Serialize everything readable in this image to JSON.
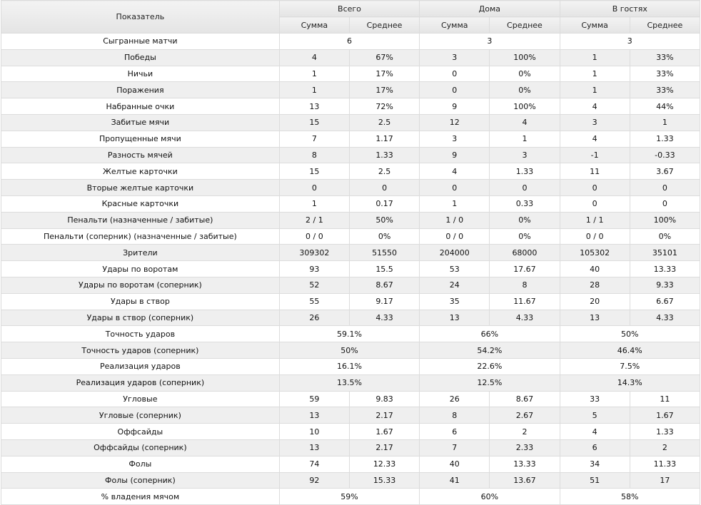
{
  "header": {
    "indicator_label": "Показатель",
    "groups": [
      "Всего",
      "Дома",
      "В гостях"
    ],
    "sub_labels": [
      "Сумма",
      "Среднее"
    ]
  },
  "rows": [
    {
      "label": "Сыгранные матчи",
      "merged": true,
      "values": [
        "6",
        "3",
        "3"
      ]
    },
    {
      "label": "Победы",
      "merged": false,
      "values": [
        "4",
        "67%",
        "3",
        "100%",
        "1",
        "33%"
      ]
    },
    {
      "label": "Ничьи",
      "merged": false,
      "values": [
        "1",
        "17%",
        "0",
        "0%",
        "1",
        "33%"
      ]
    },
    {
      "label": "Поражения",
      "merged": false,
      "values": [
        "1",
        "17%",
        "0",
        "0%",
        "1",
        "33%"
      ]
    },
    {
      "label": "Набранные очки",
      "merged": false,
      "values": [
        "13",
        "72%",
        "9",
        "100%",
        "4",
        "44%"
      ]
    },
    {
      "label": "Забитые мячи",
      "merged": false,
      "values": [
        "15",
        "2.5",
        "12",
        "4",
        "3",
        "1"
      ]
    },
    {
      "label": "Пропущенные мячи",
      "merged": false,
      "values": [
        "7",
        "1.17",
        "3",
        "1",
        "4",
        "1.33"
      ]
    },
    {
      "label": "Разность мячей",
      "merged": false,
      "values": [
        "8",
        "1.33",
        "9",
        "3",
        "-1",
        "-0.33"
      ]
    },
    {
      "label": "Желтые карточки",
      "merged": false,
      "values": [
        "15",
        "2.5",
        "4",
        "1.33",
        "11",
        "3.67"
      ]
    },
    {
      "label": "Вторые желтые карточки",
      "merged": false,
      "values": [
        "0",
        "0",
        "0",
        "0",
        "0",
        "0"
      ]
    },
    {
      "label": "Красные карточки",
      "merged": false,
      "values": [
        "1",
        "0.17",
        "1",
        "0.33",
        "0",
        "0"
      ]
    },
    {
      "label": "Пенальти (назначенные / забитые)",
      "merged": false,
      "values": [
        "2 / 1",
        "50%",
        "1 / 0",
        "0%",
        "1 / 1",
        "100%"
      ]
    },
    {
      "label": "Пенальти (соперник) (назначенные / забитые)",
      "merged": false,
      "values": [
        "0 / 0",
        "0%",
        "0 / 0",
        "0%",
        "0 / 0",
        "0%"
      ]
    },
    {
      "label": "Зрители",
      "merged": false,
      "values": [
        "309302",
        "51550",
        "204000",
        "68000",
        "105302",
        "35101"
      ]
    },
    {
      "label": "Удары по воротам",
      "merged": false,
      "values": [
        "93",
        "15.5",
        "53",
        "17.67",
        "40",
        "13.33"
      ]
    },
    {
      "label": "Удары по воротам (соперник)",
      "merged": false,
      "values": [
        "52",
        "8.67",
        "24",
        "8",
        "28",
        "9.33"
      ]
    },
    {
      "label": "Удары в створ",
      "merged": false,
      "values": [
        "55",
        "9.17",
        "35",
        "11.67",
        "20",
        "6.67"
      ]
    },
    {
      "label": "Удары в створ (соперник)",
      "merged": false,
      "values": [
        "26",
        "4.33",
        "13",
        "4.33",
        "13",
        "4.33"
      ]
    },
    {
      "label": "Точность ударов",
      "merged": true,
      "values": [
        "59.1%",
        "66%",
        "50%"
      ]
    },
    {
      "label": "Точность ударов (соперник)",
      "merged": true,
      "values": [
        "50%",
        "54.2%",
        "46.4%"
      ]
    },
    {
      "label": "Реализация ударов",
      "merged": true,
      "values": [
        "16.1%",
        "22.6%",
        "7.5%"
      ]
    },
    {
      "label": "Реализация ударов (соперник)",
      "merged": true,
      "values": [
        "13.5%",
        "12.5%",
        "14.3%"
      ]
    },
    {
      "label": "Угловые",
      "merged": false,
      "values": [
        "59",
        "9.83",
        "26",
        "8.67",
        "33",
        "11"
      ]
    },
    {
      "label": "Угловые (соперник)",
      "merged": false,
      "values": [
        "13",
        "2.17",
        "8",
        "2.67",
        "5",
        "1.67"
      ]
    },
    {
      "label": "Оффсайды",
      "merged": false,
      "values": [
        "10",
        "1.67",
        "6",
        "2",
        "4",
        "1.33"
      ]
    },
    {
      "label": "Оффсайды (соперник)",
      "merged": false,
      "values": [
        "13",
        "2.17",
        "7",
        "2.33",
        "6",
        "2"
      ]
    },
    {
      "label": "Фолы",
      "merged": false,
      "values": [
        "74",
        "12.33",
        "40",
        "13.33",
        "34",
        "11.33"
      ]
    },
    {
      "label": "Фолы (соперник)",
      "merged": false,
      "values": [
        "92",
        "15.33",
        "41",
        "13.67",
        "51",
        "17"
      ]
    },
    {
      "label": "% владения мячом",
      "merged": true,
      "values": [
        "59%",
        "60%",
        "58%"
      ]
    }
  ]
}
